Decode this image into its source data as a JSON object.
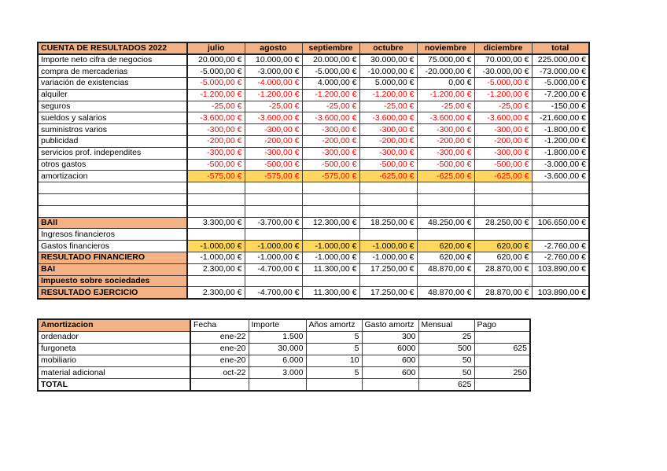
{
  "colors": {
    "header_fill": "#F4B183",
    "highlight_fill": "#FFD75E",
    "negative_text": "#FF0000"
  },
  "income_statement": {
    "title": "CUENTA DE RESULTADOS 2022",
    "columns": [
      "julio",
      "agosto",
      "septiembre",
      "octubre",
      "noviembre",
      "diciembre",
      "total"
    ],
    "rows": [
      {
        "label": "Importe neto cifra de negocios",
        "label_bg": "white",
        "bold": false,
        "red_negatives": false,
        "highlight_months": false,
        "values": [
          "20.000,00 €",
          "10.000,00 €",
          "20.000,00 €",
          "30.000,00 €",
          "75.000,00 €",
          "70.000,00 €",
          "225.000,00 €"
        ]
      },
      {
        "label": "compra de mercaderias",
        "label_bg": "white",
        "bold": false,
        "red_negatives": false,
        "highlight_months": false,
        "values": [
          "-5.000,00 €",
          "-3.000,00 €",
          "-5.000,00 €",
          "-10.000,00 €",
          "-20.000,00 €",
          "-30.000,00 €",
          "-73.000,00 €"
        ]
      },
      {
        "label": "variación de existencias",
        "label_bg": "white",
        "bold": false,
        "red_negatives": true,
        "highlight_months": false,
        "values": [
          "-5.000,00 €",
          "-4.000,00 €",
          "4.000,00 €",
          "5.000,00 €",
          "0,00 €",
          "-5.000,00 €",
          "-5.000,00 €"
        ]
      },
      {
        "label": "alquiler",
        "label_bg": "white",
        "bold": false,
        "red_negatives": true,
        "highlight_months": false,
        "values": [
          "-1.200,00 €",
          "-1.200,00 €",
          "-1.200,00 €",
          "-1.200,00 €",
          "-1.200,00 €",
          "-1.200,00 €",
          "-7.200,00 €"
        ]
      },
      {
        "label": "seguros",
        "label_bg": "white",
        "bold": false,
        "red_negatives": true,
        "highlight_months": false,
        "values": [
          "-25,00 €",
          "-25,00 €",
          "-25,00 €",
          "-25,00 €",
          "-25,00 €",
          "-25,00 €",
          "-150,00 €"
        ]
      },
      {
        "label": "sueldos y salarios",
        "label_bg": "white",
        "bold": false,
        "red_negatives": true,
        "highlight_months": false,
        "values": [
          "-3.600,00 €",
          "-3.600,00 €",
          "-3.600,00 €",
          "-3.600,00 €",
          "-3.600,00 €",
          "-3.600,00 €",
          "-21.600,00 €"
        ]
      },
      {
        "label": "suministros varios",
        "label_bg": "white",
        "bold": false,
        "red_negatives": true,
        "highlight_months": false,
        "values": [
          "-300,00 €",
          "-300,00 €",
          "-300,00 €",
          "-300,00 €",
          "-300,00 €",
          "-300,00 €",
          "-1.800,00 €"
        ]
      },
      {
        "label": "publicidad",
        "label_bg": "white",
        "bold": false,
        "red_negatives": true,
        "highlight_months": false,
        "values": [
          "-200,00 €",
          "-200,00 €",
          "-200,00 €",
          "-200,00 €",
          "-200,00 €",
          "-200,00 €",
          "-1.200,00 €"
        ]
      },
      {
        "label": "servicios prof. independites",
        "label_bg": "white",
        "bold": false,
        "red_negatives": true,
        "highlight_months": false,
        "values": [
          "-300,00 €",
          "-300,00 €",
          "-300,00 €",
          "-300,00 €",
          "-300,00 €",
          "-300,00 €",
          "-1.800,00 €"
        ]
      },
      {
        "label": "otros gastos",
        "label_bg": "white",
        "bold": false,
        "red_negatives": true,
        "highlight_months": false,
        "values": [
          "-500,00 €",
          "-500,00 €",
          "-500,00 €",
          "-500,00 €",
          "-500,00 €",
          "-500,00 €",
          "-3.000,00 €"
        ]
      },
      {
        "label": "amortizacion",
        "label_bg": "white",
        "bold": false,
        "red_negatives": true,
        "highlight_months": true,
        "values": [
          "-575,00 €",
          "-575,00 €",
          "-575,00 €",
          "-625,00 €",
          "-625,00 €",
          "-625,00 €",
          "-3.600,00 €"
        ]
      },
      {
        "label": "",
        "label_bg": "white",
        "bold": false,
        "red_negatives": false,
        "highlight_months": false,
        "values": [
          "",
          "",
          "",
          "",
          "",
          "",
          ""
        ]
      },
      {
        "label": "",
        "label_bg": "white",
        "bold": false,
        "red_negatives": false,
        "highlight_months": false,
        "values": [
          "",
          "",
          "",
          "",
          "",
          "",
          ""
        ]
      },
      {
        "label": "",
        "label_bg": "white",
        "bold": false,
        "red_negatives": false,
        "highlight_months": false,
        "values": [
          "",
          "",
          "",
          "",
          "",
          "",
          ""
        ]
      },
      {
        "label": "BAII",
        "label_bg": "orange",
        "bold": true,
        "red_negatives": false,
        "highlight_months": false,
        "values": [
          "3.300,00 €",
          "-3.700,00 €",
          "12.300,00 €",
          "18.250,00 €",
          "48.250,00 €",
          "28.250,00 €",
          "106.650,00 €"
        ]
      },
      {
        "label": "Ingresos financieros",
        "label_bg": "white",
        "bold": false,
        "red_negatives": false,
        "highlight_months": false,
        "values": [
          "",
          "",
          "",
          "",
          "",
          "",
          ""
        ]
      },
      {
        "label": "Gastos financieros",
        "label_bg": "white",
        "bold": false,
        "red_negatives": false,
        "highlight_months": true,
        "values": [
          "-1.000,00 €",
          "-1.000,00 €",
          "-1.000,00 €",
          "-1.000,00 €",
          "620,00 €",
          "620,00 €",
          "-2.760,00 €"
        ]
      },
      {
        "label": "RESULTADO FINANCIERO",
        "label_bg": "orange",
        "bold": true,
        "red_negatives": false,
        "highlight_months": false,
        "values": [
          "-1.000,00 €",
          "-1.000,00 €",
          "-1.000,00 €",
          "-1.000,00 €",
          "620,00 €",
          "620,00 €",
          "-2.760,00 €"
        ]
      },
      {
        "label": "BAI",
        "label_bg": "orange",
        "bold": true,
        "red_negatives": false,
        "highlight_months": false,
        "values": [
          "2.300,00 €",
          "-4.700,00 €",
          "11.300,00 €",
          "17.250,00 €",
          "48.870,00 €",
          "28.870,00 €",
          "103.890,00 €"
        ]
      },
      {
        "label": "Impuesto sobre sociedades",
        "label_bg": "orange",
        "bold": true,
        "red_negatives": false,
        "highlight_months": false,
        "values": [
          "",
          "",
          "",
          "",
          "",
          "",
          ""
        ]
      },
      {
        "label": "RESULTADO EJERCICIO",
        "label_bg": "orange",
        "bold": true,
        "red_negatives": false,
        "highlight_months": false,
        "values": [
          "2.300,00 €",
          "-4.700,00 €",
          "11.300,00 €",
          "17.250,00 €",
          "48.870,00 €",
          "28.870,00 €",
          "103.890,00 €"
        ]
      }
    ]
  },
  "amortization": {
    "title": "Amortizacion",
    "columns": [
      "Fecha",
      "Importe",
      "Años amortz",
      "Gasto amortz",
      "Mensual",
      "Pago"
    ],
    "rows": [
      {
        "label": "ordenador",
        "bold": false,
        "values": [
          "ene-22",
          "1.500",
          "5",
          "300",
          "25",
          ""
        ]
      },
      {
        "label": "furgoneta",
        "bold": false,
        "values": [
          "ene-20",
          "30.000",
          "5",
          "6000",
          "500",
          "625"
        ]
      },
      {
        "label": "mobiliario",
        "bold": false,
        "values": [
          "ene-20",
          "6.000",
          "10",
          "600",
          "50",
          ""
        ]
      },
      {
        "label": "material adicional",
        "bold": false,
        "values": [
          "oct-22",
          "3.000",
          "5",
          "600",
          "50",
          "250"
        ]
      },
      {
        "label": "TOTAL",
        "bold": true,
        "values": [
          "",
          "",
          "",
          "",
          "625",
          ""
        ]
      }
    ]
  }
}
